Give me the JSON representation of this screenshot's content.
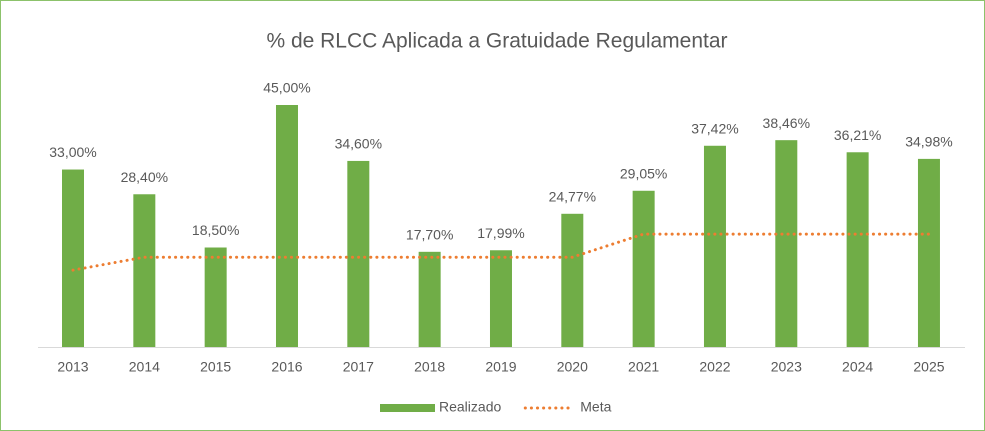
{
  "chart_data": {
    "type": "bar",
    "title": "% de RLCC Aplicada a Gratuidade Regulamentar",
    "categories": [
      "2013",
      "2014",
      "2015",
      "2016",
      "2017",
      "2018",
      "2019",
      "2020",
      "2021",
      "2022",
      "2023",
      "2024",
      "2025"
    ],
    "series": [
      {
        "name": "Realizado",
        "type": "bar",
        "color": "#70ad47",
        "values": [
          33.0,
          28.4,
          18.5,
          45.0,
          34.6,
          17.7,
          17.99,
          24.77,
          29.05,
          37.42,
          38.46,
          36.21,
          34.98
        ],
        "value_labels": [
          "33,00%",
          "28,40%",
          "18,50%",
          "45,00%",
          "34,60%",
          "17,70%",
          "17,99%",
          "24,77%",
          "29,05%",
          "37,42%",
          "38,46%",
          "36,21%",
          "34,98%"
        ]
      },
      {
        "name": "Meta",
        "type": "line",
        "color": "#ed7d31",
        "values": [
          14.3,
          16.7,
          16.7,
          16.7,
          16.7,
          16.7,
          16.7,
          16.7,
          21,
          21,
          21,
          21,
          21
        ]
      }
    ]
  }
}
